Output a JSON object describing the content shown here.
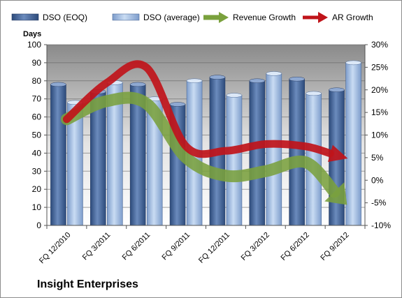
{
  "chart_data": {
    "type": "bar",
    "title": "Insight Enterprises",
    "ylabel": "Days",
    "ylim": [
      0,
      100
    ],
    "y2lim": [
      -10,
      30
    ],
    "left_ticks": [
      "0",
      "10",
      "20",
      "30",
      "40",
      "50",
      "60",
      "70",
      "80",
      "90",
      "100"
    ],
    "right_ticks": [
      "-10%",
      "-5%",
      "0%",
      "5%",
      "10%",
      "15%",
      "20%",
      "25%",
      "30%"
    ],
    "categories": [
      "FQ 12/2010",
      "FQ 3/2011",
      "FQ 6/2011",
      "FQ 9/2011",
      "FQ 12/2011",
      "FQ 3/2012",
      "FQ 6/2012",
      "FQ 9/2012"
    ],
    "grid": true,
    "legend_position": "top",
    "series": [
      {
        "name": "DSO (EOQ)",
        "kind": "bar",
        "axis": "left",
        "color": "#4a6a9c",
        "values": [
          78,
          74,
          78,
          67,
          82,
          80,
          81,
          75
        ]
      },
      {
        "name": "DSO (average)",
        "kind": "bar",
        "axis": "left",
        "color": "#a9c3e6",
        "values": [
          68,
          79,
          70,
          80,
          72,
          84,
          73,
          90
        ]
      },
      {
        "name": "Revenue Growth",
        "kind": "arrow",
        "axis": "right",
        "color": "#7aa13d",
        "values": [
          13.5,
          17.5,
          17.0,
          5.0,
          1.0,
          2.0,
          4.0,
          -5.0
        ]
      },
      {
        "name": "AR Growth",
        "kind": "arrow",
        "axis": "right",
        "color": "#c0141a",
        "values": [
          13.5,
          21.5,
          25.0,
          7.5,
          6.5,
          8.0,
          7.5,
          5.0
        ]
      }
    ]
  }
}
